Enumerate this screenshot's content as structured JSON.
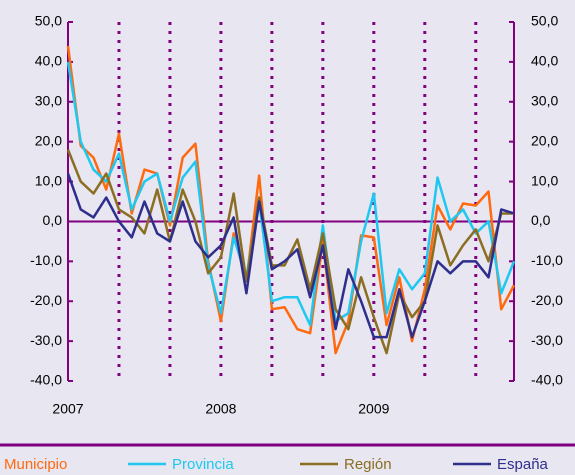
{
  "chart_data": {
    "type": "line",
    "categories": [
      "2007",
      null,
      null,
      null,
      null,
      null,
      null,
      null,
      null,
      null,
      null,
      null,
      "2008",
      null,
      null,
      null,
      null,
      null,
      null,
      null,
      null,
      null,
      null,
      null,
      "2009",
      null,
      null,
      null,
      null,
      null,
      null,
      null,
      null,
      null,
      null,
      null
    ],
    "ylim": [
      -40,
      50
    ],
    "yticks": [
      {
        "value": -40,
        "label": "-40,0"
      },
      {
        "value": -30,
        "label": "-30,0"
      },
      {
        "value": -20,
        "label": "-20,0"
      },
      {
        "value": -10,
        "label": "-10,0"
      },
      {
        "value": 0,
        "label": "0,0"
      },
      {
        "value": 10,
        "label": "10,0"
      },
      {
        "value": 20,
        "label": "20,0"
      },
      {
        "value": 30,
        "label": "30,0"
      },
      {
        "value": 40,
        "label": "40,0"
      },
      {
        "value": 50,
        "label": "50,0"
      }
    ],
    "y2lim": [
      -40,
      50
    ],
    "y2ticks": [
      {
        "value": -40,
        "label": "-40,0"
      },
      {
        "value": -30,
        "label": "-30,0"
      },
      {
        "value": -20,
        "label": "-20,0"
      },
      {
        "value": -10,
        "label": "-10,0"
      },
      {
        "value": 0,
        "label": "0,0"
      },
      {
        "value": 10,
        "label": "10,0"
      },
      {
        "value": 20,
        "label": "20,0"
      },
      {
        "value": 30,
        "label": "30,0"
      },
      {
        "value": 40,
        "label": "40,0"
      },
      {
        "value": 50,
        "label": "50,0"
      }
    ],
    "axis_color": "#800080",
    "legend": "bottom",
    "series": [
      {
        "name": "Municipio",
        "color": "#ff6a10",
        "values": [
          44,
          19,
          16,
          8,
          22,
          2,
          13,
          12,
          -1,
          16,
          19.5,
          -10,
          -25,
          -3,
          -15,
          11.5,
          -22,
          -21.5,
          -27,
          -28,
          -5,
          -33,
          -25,
          -3.5,
          -4,
          -26,
          -14,
          -30,
          -17,
          4,
          -2,
          4.5,
          4,
          7.5,
          -22,
          -16
        ]
      },
      {
        "name": "Provincia",
        "color": "#1ec8f0",
        "values": [
          40,
          20,
          13,
          10,
          17,
          3,
          10,
          12,
          0,
          11,
          15,
          -11,
          -23,
          -4,
          -14,
          5,
          -20,
          -19,
          -19,
          -26,
          -1,
          -25,
          -23,
          -5,
          7,
          -23,
          -12,
          -17,
          -13,
          11,
          0,
          3,
          -3,
          0,
          -18,
          -10
        ]
      },
      {
        "name": "Región",
        "color": "#8b6e22",
        "values": [
          18,
          10,
          7,
          12,
          3,
          1,
          -3,
          8,
          -5,
          8,
          0,
          -13,
          -9,
          7,
          -15,
          6,
          -11,
          -11,
          -4.5,
          -17,
          -3,
          -22,
          -27,
          -14,
          -24,
          -33,
          -18,
          -24,
          -20,
          -1,
          -11,
          -6,
          -2,
          -10,
          2,
          2
        ]
      },
      {
        "name": "España",
        "color": "#2e2e8c",
        "values": [
          12,
          3,
          1,
          6,
          0,
          -4,
          5,
          -3,
          -5,
          5,
          -5,
          -9,
          -6,
          1,
          -18,
          5,
          -12,
          -10,
          -7,
          -19,
          -6,
          -27,
          -12,
          -20,
          -29,
          -29,
          -17,
          -29,
          -20,
          -10,
          -13,
          -10,
          -10,
          -14,
          3,
          2
        ]
      }
    ]
  }
}
